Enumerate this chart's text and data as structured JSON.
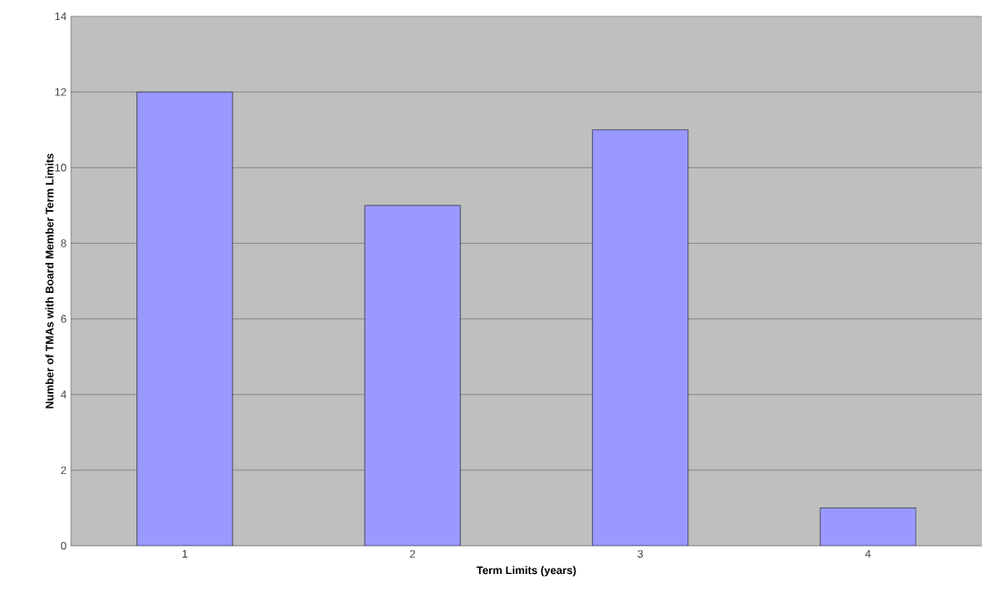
{
  "chart_data": {
    "type": "bar",
    "xlabel": "Term Limits (years)",
    "ylabel": "Number of TMAs with Board Member Term Limits",
    "categories": [
      "1",
      "2",
      "3",
      "4"
    ],
    "values": [
      12,
      9,
      11,
      1
    ],
    "color": "#9999ff",
    "ylim": [
      0,
      14
    ],
    "yticks": [
      0,
      2,
      4,
      6,
      8,
      10,
      12,
      14
    ],
    "grid": "y"
  }
}
